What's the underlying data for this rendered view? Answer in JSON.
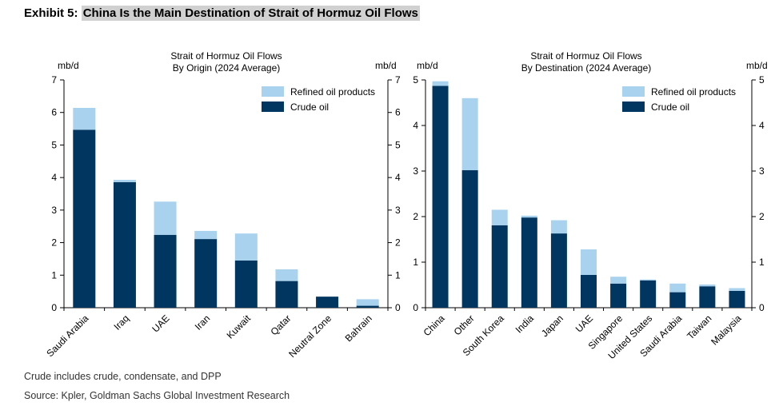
{
  "exhibit": {
    "label": "Exhibit 5:",
    "title": "China Is the Main Destination of Strait of Hormuz Oil Flows"
  },
  "footnotes": {
    "note": "Crude includes crude, condensate, and DPP",
    "source": "Source: Kpler, Goldman Sachs Global Investment Research"
  },
  "colors": {
    "crude": "#003660",
    "refined": "#a8d2ee"
  },
  "chart_data": [
    {
      "type": "bar",
      "stacked": true,
      "title": "Strait of Hormuz Oil Flows",
      "subtitle": "By Origin (2024 Average)",
      "ylabel_left": "mb/d",
      "ylabel_right": "mb/d",
      "ylim": [
        0,
        7
      ],
      "yticks": [
        0,
        1,
        2,
        3,
        4,
        5,
        6,
        7
      ],
      "legend_position": "top-right",
      "categories": [
        "Saudi Arabia",
        "Iraq",
        "UAE",
        "Iran",
        "Kuwait",
        "Qatar",
        "Neutral Zone",
        "Bahrain"
      ],
      "series": [
        {
          "name": "Crude oil",
          "values": [
            5.47,
            3.86,
            2.24,
            2.11,
            1.45,
            0.82,
            0.34,
            0.06
          ]
        },
        {
          "name": "Refined oil products",
          "values": [
            0.67,
            0.07,
            1.02,
            0.25,
            0.83,
            0.36,
            0.0,
            0.2
          ]
        }
      ]
    },
    {
      "type": "bar",
      "stacked": true,
      "title": "Strait of Hormuz Oil Flows",
      "subtitle": "By Destination (2024 Average)",
      "ylabel_left": "mb/d",
      "ylabel_right": "mb/d",
      "ylim": [
        0,
        5
      ],
      "yticks": [
        0,
        1,
        2,
        3,
        4,
        5
      ],
      "legend_position": "top-right",
      "categories": [
        "China",
        "Other",
        "South Korea",
        "India",
        "Japan",
        "UAE",
        "Singapore",
        "United States",
        "Saudi Arabia",
        "Taiwan",
        "Malaysia"
      ],
      "series": [
        {
          "name": "Crude oil",
          "values": [
            4.87,
            3.02,
            1.81,
            1.98,
            1.63,
            0.72,
            0.53,
            0.6,
            0.34,
            0.47,
            0.37
          ]
        },
        {
          "name": "Refined oil products",
          "values": [
            0.1,
            1.58,
            0.34,
            0.04,
            0.29,
            0.56,
            0.15,
            0.02,
            0.19,
            0.04,
            0.06
          ]
        }
      ]
    }
  ]
}
